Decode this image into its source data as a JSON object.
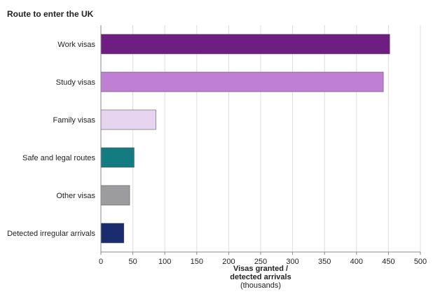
{
  "chart_data": {
    "type": "bar",
    "orientation": "horizontal",
    "title": "Route to enter the UK",
    "xlabel_line1": "Visas granted /",
    "xlabel_line2": "detected arrivals",
    "xlabel_unit": "(thousands)",
    "xlim": [
      0,
      500
    ],
    "xticks": [
      0,
      50,
      100,
      150,
      200,
      250,
      300,
      350,
      400,
      450,
      500
    ],
    "grid": "vertical",
    "legend": "none",
    "categories": [
      "Work visas",
      "Study visas",
      "Family visas",
      "Safe and legal routes",
      "Other visas",
      "Detected irregular arrivals"
    ],
    "values": [
      452,
      442,
      86,
      52,
      45,
      36
    ],
    "colors": [
      "#6e1e80",
      "#bf7fd2",
      "#e6d4f0",
      "#137c80",
      "#9c9c9e",
      "#1a2b6e"
    ]
  }
}
